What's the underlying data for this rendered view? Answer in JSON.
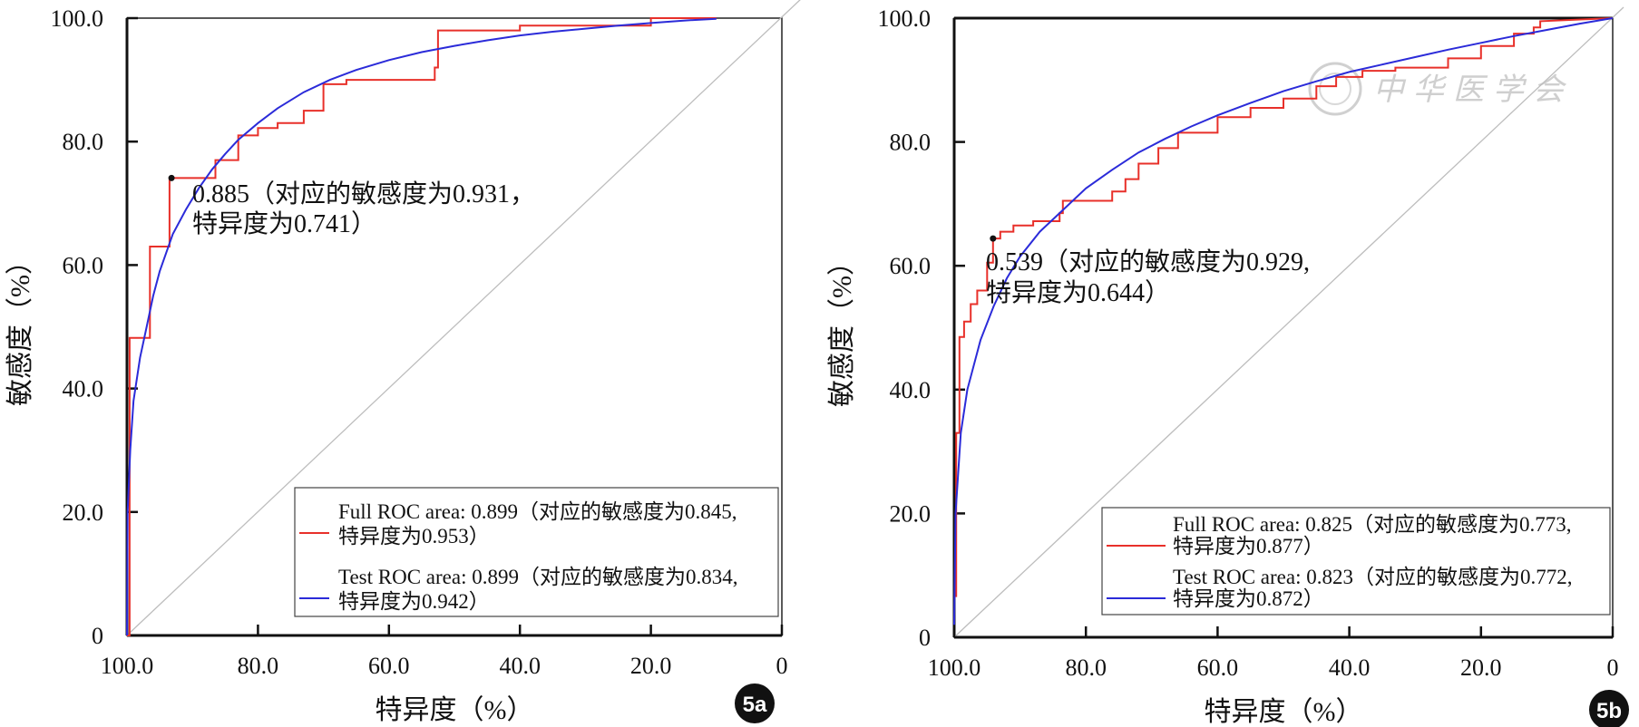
{
  "chart_data": [
    {
      "type": "line",
      "panel_label": "5a",
      "xlabel": "特异度（%）",
      "ylabel": "敏感度（%）",
      "xlim": [
        100,
        0
      ],
      "ylim": [
        0,
        100
      ],
      "x_tick_labels": [
        "100.0",
        "80.0",
        "60.0",
        "40.0",
        "20.0",
        "0"
      ],
      "y_tick_labels": [
        "0",
        "20.0",
        "40.0",
        "60.0",
        "80.0",
        "100.0"
      ],
      "annotation": {
        "point": [
          93.2,
          74.1
        ],
        "lines": [
          "0.885（对应的敏感度为0.931，",
          "特异度为0.741）"
        ]
      },
      "legend": {
        "placement": "bottom-right",
        "entries": [
          {
            "lines": [
              "Full ROC area: 0.899（对应的敏感度为0.845,",
              "特异度为0.953）"
            ],
            "color": "#e8302a"
          },
          {
            "lines": [
              "Test ROC area: 0.899（对应的敏感度为0.834,",
              "特异度为0.942）"
            ],
            "color": "#2b2bd9"
          }
        ]
      },
      "series": [
        {
          "name": "Full ROC",
          "color": "#e8302a",
          "step": true,
          "x": [
            100,
            99.6,
            99.6,
            96.5,
            96.5,
            93.5,
            93.5,
            86.5,
            86.5,
            83.0,
            83.0,
            80.0,
            80.0,
            77.0,
            77.0,
            73.0,
            73.0,
            70.0,
            70.0,
            66.5,
            66.5,
            53.0,
            53.0,
            52.5,
            52.5,
            40.0,
            40.0,
            20.0,
            20.0,
            10.0
          ],
          "y": [
            0,
            0,
            48.2,
            48.2,
            63.0,
            63.0,
            74.1,
            74.1,
            77.0,
            77.0,
            81.0,
            81.0,
            82.2,
            82.2,
            83.0,
            83.0,
            85.0,
            85.0,
            89.3,
            89.3,
            90.0,
            90.0,
            92.0,
            92.0,
            98.0,
            98.0,
            98.8,
            98.8,
            100.0,
            100.0
          ]
        },
        {
          "name": "Test ROC",
          "color": "#2b2bd9",
          "step": false,
          "x": [
            100,
            99.9,
            99.5,
            99.0,
            98.0,
            97.0,
            96.0,
            95.0,
            93.0,
            91.0,
            89.0,
            87.0,
            85.0,
            83.0,
            80.0,
            77.0,
            73.0,
            69.0,
            65.0,
            60.0,
            55.0,
            50.0,
            45.0,
            40.0,
            35.0,
            30.0,
            25.0,
            20.0,
            15.0,
            10.0
          ],
          "y": [
            0,
            20.0,
            30.0,
            38.0,
            45.0,
            50.0,
            55.0,
            59.0,
            65.0,
            69.0,
            72.5,
            75.5,
            78.0,
            80.3,
            83.0,
            85.4,
            88.0,
            90.0,
            91.6,
            93.2,
            94.5,
            95.5,
            96.4,
            97.2,
            97.8,
            98.3,
            98.8,
            99.2,
            99.6,
            99.9
          ]
        }
      ]
    },
    {
      "type": "line",
      "panel_label": "5b",
      "xlabel": "特异度（%）",
      "ylabel": "敏感度（%）",
      "xlim": [
        100,
        0
      ],
      "ylim": [
        0,
        100
      ],
      "x_tick_labels": [
        "100.0",
        "80.0",
        "60.0",
        "40.0",
        "20.0",
        "0"
      ],
      "y_tick_labels": [
        "0",
        "20.0",
        "40.0",
        "60.0",
        "80.0",
        "100.0"
      ],
      "annotation": {
        "point": [
          94.1,
          64.4
        ],
        "lines": [
          "0.539（对应的敏感度为0.929,",
          "特异度为0.644）"
        ]
      },
      "legend": {
        "placement": "bottom-right",
        "entries": [
          {
            "lines": [
              "Full ROC area: 0.825（对应的敏感度为0.773,",
              "特异度为0.877）"
            ],
            "color": "#e8302a"
          },
          {
            "lines": [
              "Test ROC area: 0.823（对应的敏感度为0.772,",
              "特异度为0.872）"
            ],
            "color": "#2b2bd9"
          }
        ]
      },
      "watermark": "中华医学会",
      "series": [
        {
          "name": "Full ROC",
          "color": "#e8302a",
          "step": true,
          "x": [
            99.7,
            99.7,
            99.2,
            99.2,
            98.5,
            98.5,
            97.5,
            97.5,
            96.5,
            96.5,
            95.0,
            95.0,
            94.1,
            94.1,
            93.0,
            93.0,
            91.0,
            91.0,
            88.0,
            88.0,
            84.0,
            84.0,
            83.5,
            83.5,
            76.0,
            76.0,
            74.0,
            74.0,
            72.0,
            72.0,
            69.0,
            69.0,
            66.0,
            66.0,
            60.0,
            60.0,
            55.0,
            55.0,
            50.0,
            50.0,
            45.0,
            45.0,
            42.0,
            42.0,
            38.0,
            38.0,
            33.0,
            33.0,
            25.0,
            25.0,
            20.0,
            20.0,
            15.0,
            15.0,
            12.0,
            12.0,
            11.0,
            11.0,
            0
          ],
          "y": [
            6.5,
            33.0,
            33.0,
            48.5,
            48.5,
            51.0,
            51.0,
            53.8,
            53.8,
            56.0,
            56.0,
            60.5,
            60.5,
            64.4,
            64.4,
            65.5,
            65.5,
            66.5,
            66.5,
            67.2,
            67.2,
            68.5,
            68.5,
            70.5,
            70.5,
            72.0,
            72.0,
            74.0,
            74.0,
            76.5,
            76.5,
            79.0,
            79.0,
            81.5,
            81.5,
            84.0,
            84.0,
            85.5,
            85.5,
            87.0,
            87.0,
            89.0,
            89.0,
            90.5,
            90.5,
            91.5,
            91.5,
            92.0,
            92.0,
            93.5,
            93.5,
            95.5,
            95.5,
            97.5,
            97.5,
            98.5,
            98.5,
            99.5,
            100.0
          ]
        },
        {
          "name": "Test ROC",
          "color": "#2b2bd9",
          "step": false,
          "x": [
            100,
            99.8,
            99.0,
            98.0,
            96.0,
            94.0,
            92.0,
            90.0,
            87.0,
            84.0,
            80.0,
            76.0,
            72.0,
            68.0,
            64.0,
            60.0,
            55.0,
            50.0,
            45.0,
            40.0,
            35.0,
            30.0,
            25.0,
            20.0,
            15.0,
            10.0,
            5.0,
            0
          ],
          "y": [
            2.0,
            20.0,
            33.0,
            40.0,
            48.0,
            53.5,
            58.0,
            61.5,
            65.5,
            68.5,
            72.5,
            75.5,
            78.3,
            80.5,
            82.5,
            84.3,
            86.3,
            88.2,
            89.8,
            91.3,
            92.5,
            93.7,
            94.9,
            96.0,
            97.1,
            98.1,
            99.1,
            100.0
          ]
        }
      ]
    }
  ]
}
